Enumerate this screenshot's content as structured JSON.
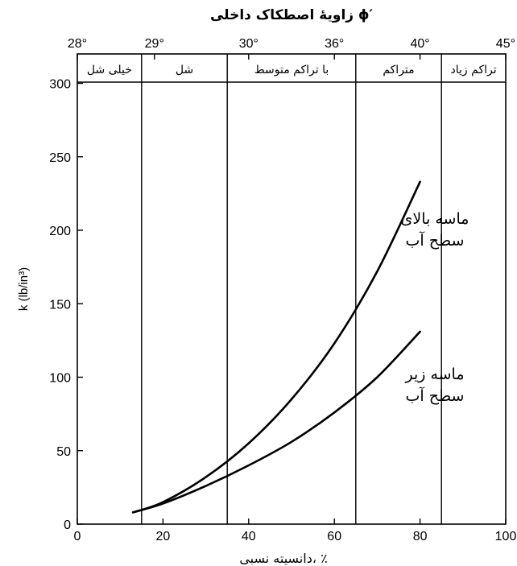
{
  "chart_data": {
    "type": "line",
    "top_axis": {
      "title": "زاویهٔ اصطکاک داخلی ϕ′",
      "ticks": [
        {
          "x": 0,
          "label": "28°"
        },
        {
          "x": 18,
          "label": "29°"
        },
        {
          "x": 40,
          "label": "30°"
        },
        {
          "x": 60,
          "label": "36°"
        },
        {
          "x": 80,
          "label": "40°"
        },
        {
          "x": 100,
          "label": "45°"
        }
      ]
    },
    "density_bands": [
      {
        "from": 0,
        "to": 15,
        "label": "خیلی شل"
      },
      {
        "from": 15,
        "to": 35,
        "label": "شل"
      },
      {
        "from": 35,
        "to": 65,
        "label": "با تراکم متوسط"
      },
      {
        "from": 65,
        "to": 85,
        "label": "متراکم"
      },
      {
        "from": 85,
        "to": 100,
        "label": "تراکم زیاد"
      }
    ],
    "band_dividers": [
      15,
      35,
      65,
      85
    ],
    "xlabel": "دانسیته نسبی، ٪",
    "ylabel": "k (lb/in³)",
    "xlim": [
      0,
      100
    ],
    "ylim": [
      0,
      320
    ],
    "x_ticks": [
      0,
      20,
      40,
      60,
      80,
      100
    ],
    "y_ticks": [
      0,
      50,
      100,
      150,
      200,
      250,
      300
    ],
    "series": [
      {
        "name": "ماسه بالای سطح آب",
        "label_lines": [
          "ماسه بالای",
          "سطح آب"
        ],
        "x": [
          13,
          20,
          30,
          40,
          50,
          60,
          70,
          80
        ],
        "y": [
          8,
          15,
          32,
          55,
          85,
          123,
          172,
          233
        ]
      },
      {
        "name": "ماسه زیر سطح آب",
        "label_lines": [
          "ماسه زیر",
          "سطح آب"
        ],
        "x": [
          13,
          20,
          30,
          40,
          50,
          60,
          70,
          80
        ],
        "y": [
          8,
          14,
          26,
          40,
          56,
          76,
          100,
          131
        ]
      }
    ]
  }
}
